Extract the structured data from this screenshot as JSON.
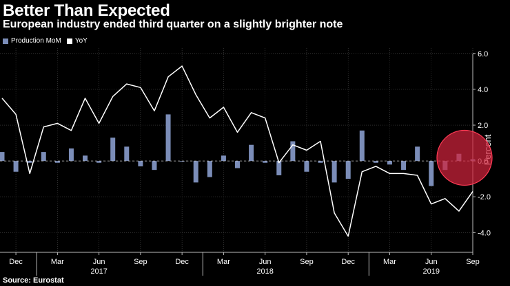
{
  "header": {
    "title": "Better Than Expected",
    "subtitle": "European industry ended third quarter on a slightly brighter note"
  },
  "source": "Source: Eurostat",
  "colors": {
    "background": "#000000",
    "bar": "#7B8DB8",
    "line": "#FFFFFF",
    "highlight": "#D0233C"
  },
  "chart_data": {
    "type": "bar",
    "title": "Better Than Expected",
    "subtitle": "European industry ended third quarter on a slightly brighter note",
    "ylabel": "Percent",
    "ylim": [
      -5.1,
      6.3
    ],
    "yticks": [
      6.0,
      4.0,
      2.0,
      0.0,
      -2.0,
      -4.0
    ],
    "ytick_labels": [
      "6.0",
      "4.0",
      "2.0",
      "0.0",
      "-2.0",
      "-4.0"
    ],
    "legend": {
      "position": "top-left",
      "entries": [
        "Production MoM",
        "YoY"
      ]
    },
    "categories": [
      "Nov 2016",
      "Dec 2016",
      "Jan 2017",
      "Feb 2017",
      "Mar 2017",
      "Apr 2017",
      "May 2017",
      "Jun 2017",
      "Jul 2017",
      "Aug 2017",
      "Sep 2017",
      "Oct 2017",
      "Nov 2017",
      "Dec 2017",
      "Jan 2018",
      "Feb 2018",
      "Mar 2018",
      "Apr 2018",
      "May 2018",
      "Jun 2018",
      "Jul 2018",
      "Aug 2018",
      "Sep 2018",
      "Oct 2018",
      "Nov 2018",
      "Dec 2018",
      "Jan 2019",
      "Feb 2019",
      "Mar 2019",
      "Apr 2019",
      "May 2019",
      "Jun 2019",
      "Jul 2019",
      "Aug 2019",
      "Sep 2019"
    ],
    "series": [
      {
        "name": "Production MoM",
        "type": "bar",
        "values": [
          0.5,
          -0.6,
          -0.1,
          0.5,
          -0.1,
          0.7,
          0.3,
          -0.1,
          1.3,
          0.8,
          -0.3,
          -0.5,
          2.6,
          0.0,
          -1.2,
          -0.9,
          0.3,
          -0.4,
          0.9,
          -0.1,
          -0.8,
          1.1,
          -0.6,
          -0.1,
          -1.2,
          -1.0,
          1.7,
          -0.1,
          -0.2,
          -0.5,
          0.8,
          -1.4,
          -0.5,
          0.4,
          0.1
        ]
      },
      {
        "name": "YoY",
        "type": "line",
        "values": [
          3.5,
          2.6,
          -0.7,
          1.9,
          2.1,
          1.7,
          3.5,
          2.1,
          3.6,
          4.3,
          4.1,
          2.8,
          4.7,
          5.3,
          3.7,
          2.4,
          3.0,
          1.6,
          2.7,
          2.4,
          -0.1,
          0.9,
          0.6,
          1.1,
          -2.9,
          -4.2,
          -0.6,
          -0.3,
          -0.7,
          -0.7,
          -0.8,
          -2.4,
          -2.1,
          -2.8,
          -1.7
        ]
      }
    ],
    "x_month_labels": [
      {
        "label": "Dec",
        "index": 1
      },
      {
        "label": "Mar",
        "index": 4
      },
      {
        "label": "Jun",
        "index": 7
      },
      {
        "label": "Sep",
        "index": 10
      },
      {
        "label": "Dec",
        "index": 13
      },
      {
        "label": "Mar",
        "index": 16
      },
      {
        "label": "Jun",
        "index": 19
      },
      {
        "label": "Sep",
        "index": 22
      },
      {
        "label": "Dec",
        "index": 25
      },
      {
        "label": "Mar",
        "index": 28
      },
      {
        "label": "Jun",
        "index": 31
      },
      {
        "label": "Sep",
        "index": 34
      }
    ],
    "x_year_labels": [
      {
        "label": "2017",
        "index": 7
      },
      {
        "label": "2018",
        "index": 19
      },
      {
        "label": "2019",
        "index": 31
      }
    ],
    "year_separators": [
      2.5,
      14.5,
      26.5
    ],
    "annotation": {
      "type": "circle",
      "center_index": 34,
      "center_value": 0.1,
      "note": "highlighted latest reading"
    }
  }
}
